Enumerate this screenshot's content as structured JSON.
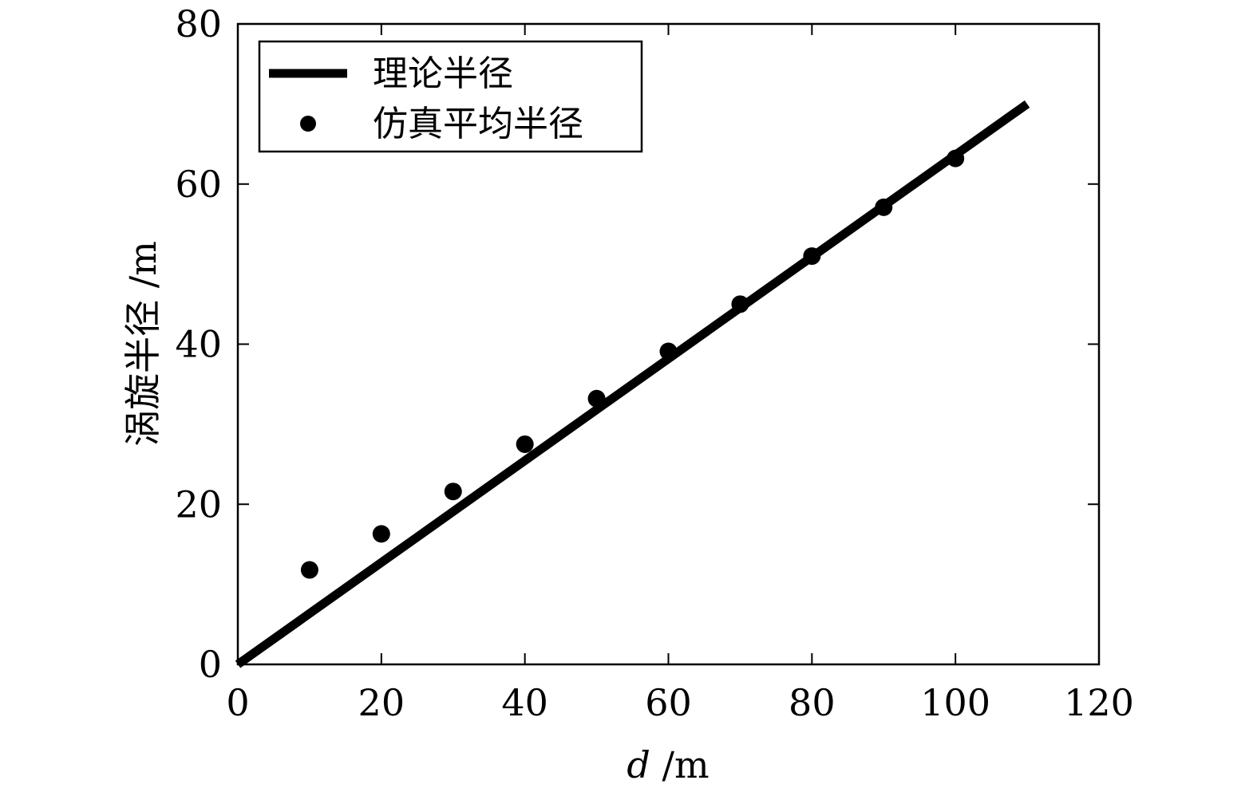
{
  "chart_data": {
    "type": "line",
    "title": "",
    "xlabel_var": "d",
    "xlabel_unit": " /m",
    "ylabel": "涡旋半径 /m",
    "xlim": [
      0,
      120
    ],
    "ylim": [
      0,
      80
    ],
    "x_ticks": [
      0,
      20,
      40,
      60,
      80,
      100,
      120
    ],
    "y_ticks": [
      0,
      20,
      40,
      60,
      80
    ],
    "x_tick_labels": [
      "0",
      "20",
      "40",
      "60",
      "80",
      "100",
      "120"
    ],
    "y_tick_labels": [
      "0",
      "20",
      "40",
      "60",
      "80"
    ],
    "grid": false,
    "legend_position": "top-left",
    "series": [
      {
        "name": "理论半径",
        "kind": "line",
        "color": "#000000",
        "x": [
          0,
          110
        ],
        "y": [
          0,
          70
        ]
      },
      {
        "name": "仿真平均半径",
        "kind": "scatter",
        "color": "#000000",
        "x": [
          10,
          20,
          30,
          40,
          50,
          60,
          70,
          80,
          90,
          100
        ],
        "y": [
          11.8,
          16.3,
          21.6,
          27.5,
          33.2,
          39.1,
          45.0,
          51.0,
          57.1,
          63.2
        ]
      }
    ]
  }
}
